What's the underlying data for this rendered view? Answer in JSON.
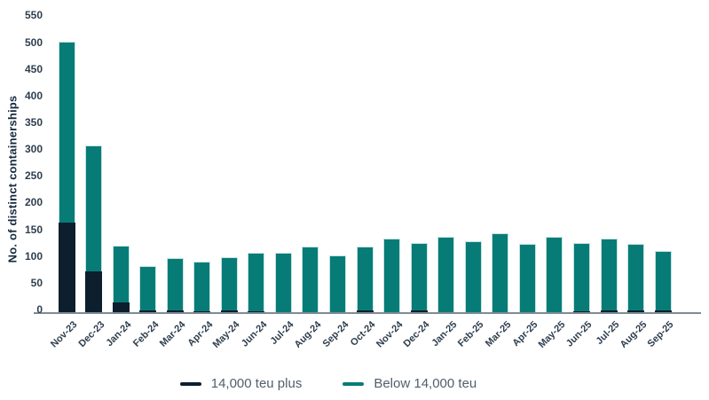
{
  "chart_data": {
    "type": "bar",
    "stacked": true,
    "title": "",
    "xlabel": "",
    "ylabel": "No. of distinct containerships",
    "ylim": [
      0,
      550
    ],
    "ytick_step": 50,
    "ytick_labels": [
      "0",
      "50",
      "100",
      "150",
      "200",
      "250",
      "300",
      "350",
      "400",
      "450",
      "500",
      "550"
    ],
    "grid": false,
    "legend_position": "bottom",
    "categories": [
      "Nov-23",
      "Dec-23",
      "Jan-24",
      "Feb-24",
      "Mar-24",
      "Apr-24",
      "May-24",
      "Jun-24",
      "Jul-24",
      "Aug-24",
      "Sep-24",
      "Oct-24",
      "Nov-24",
      "Dec-24",
      "Jan-25",
      "Feb-25",
      "Mar-25",
      "Apr-25",
      "May-25",
      "Jun-25",
      "Jul-25",
      "Aug-25",
      "Sep-25"
    ],
    "series": [
      {
        "name": "14,000 teu plus",
        "color": "#0d1e2d",
        "values": [
          165,
          75,
          18,
          3,
          3,
          2,
          3,
          2,
          0,
          0,
          0,
          3,
          0,
          3,
          0,
          0,
          0,
          0,
          0,
          2,
          4,
          4,
          4
        ]
      },
      {
        "name": "Below 14,000 teu",
        "color": "#077c77",
        "values": [
          335,
          233,
          105,
          82,
          97,
          92,
          99,
          108,
          110,
          122,
          105,
          118,
          136,
          125,
          140,
          131,
          146,
          127,
          139,
          126,
          132,
          123,
          109
        ]
      }
    ],
    "totals": [
      500,
      308,
      123,
      85,
      100,
      94,
      102,
      110,
      110,
      122,
      105,
      121,
      136,
      128,
      140,
      131,
      146,
      127,
      139,
      128,
      136,
      127,
      113
    ]
  },
  "colors": {
    "axis_line": "#7e8b94",
    "tick_text": "#2e3e4e",
    "legend_text": "#515e6b",
    "axis_title_text": "#152a3e",
    "background": "#ffffff"
  }
}
